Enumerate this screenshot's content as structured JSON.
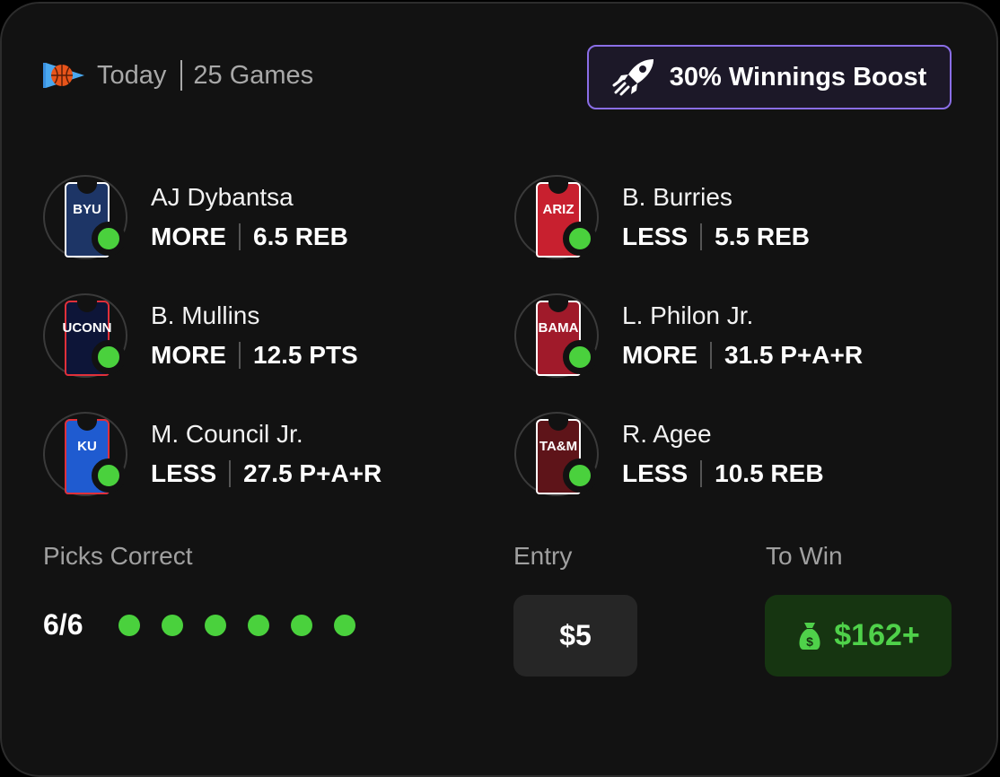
{
  "header": {
    "icon": "basketball-pennant-icon",
    "day": "Today",
    "games": "25 Games"
  },
  "boost": {
    "icon": "rocket-icon",
    "label": "30% Winnings Boost",
    "color": "#8a6ee6"
  },
  "picks": [
    {
      "team": "BYU",
      "jersey_color": "#1d3566",
      "trim": "#ffffff",
      "name": "AJ Dybantsa",
      "direction": "MORE",
      "line": "6.5 REB",
      "status": "correct"
    },
    {
      "team": "ARIZ",
      "jersey_color": "#c8202f",
      "trim": "#ffffff",
      "name": "B. Burries",
      "direction": "LESS",
      "line": "5.5 REB",
      "status": "correct"
    },
    {
      "team": "UCONN",
      "jersey_color": "#0d1538",
      "trim": "#e0303a",
      "name": "B. Mullins",
      "direction": "MORE",
      "line": "12.5 PTS",
      "status": "correct"
    },
    {
      "team": "BAMA",
      "jersey_color": "#a01a2a",
      "trim": "#ffffff",
      "name": "L. Philon Jr.",
      "direction": "MORE",
      "line": "31.5 P+A+R",
      "status": "correct"
    },
    {
      "team": "KU",
      "jersey_color": "#1f5bd0",
      "trim": "#e0303a",
      "name": "M. Council Jr.",
      "direction": "LESS",
      "line": "27.5 P+A+R",
      "status": "correct"
    },
    {
      "team": "TA&M",
      "jersey_color": "#5e1419",
      "trim": "#ffffff",
      "name": "R. Agee",
      "direction": "LESS",
      "line": "10.5 REB",
      "status": "correct"
    }
  ],
  "summary": {
    "picks_label": "Picks Correct",
    "picks_value": "6/6",
    "correct_count": 6,
    "total": 6,
    "entry_label": "Entry",
    "entry_value": "$5",
    "towin_label": "To Win",
    "towin_icon": "money-bag-icon",
    "towin_value": "$162+",
    "accent": "#4ad13d"
  }
}
